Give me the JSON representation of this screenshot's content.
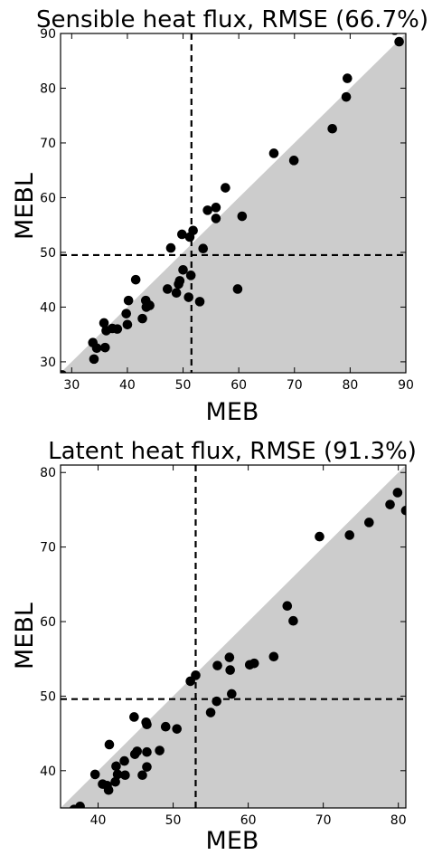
{
  "chart_data": [
    {
      "type": "scatter",
      "title": "Sensible heat flux, RMSE (66.7%)",
      "xlabel": "MEB",
      "ylabel": "MEBL",
      "xlim": [
        28,
        90
      ],
      "ylim": [
        28,
        90
      ],
      "xticks": [
        30,
        40,
        50,
        60,
        70,
        80,
        90
      ],
      "yticks": [
        30,
        40,
        50,
        60,
        70,
        80,
        90
      ],
      "grid": false,
      "legend": "none",
      "shaded_region": "below 1:1 line (y <= x)",
      "shade_color": "#cccccc",
      "point_color": "#000000",
      "vline_x": 51.5,
      "hline_y": 49.5,
      "points": [
        [
          28.3,
          27.6
        ],
        [
          33.8,
          33.5
        ],
        [
          34.0,
          30.5
        ],
        [
          34.5,
          32.5
        ],
        [
          35.8,
          37.1
        ],
        [
          36.0,
          32.6
        ],
        [
          36.2,
          35.7
        ],
        [
          37.3,
          36.1
        ],
        [
          38.2,
          36.0
        ],
        [
          39.8,
          38.8
        ],
        [
          40.0,
          36.8
        ],
        [
          40.2,
          41.2
        ],
        [
          41.5,
          45.0
        ],
        [
          42.7,
          37.9
        ],
        [
          43.3,
          41.2
        ],
        [
          43.4,
          40.0
        ],
        [
          44.0,
          40.3
        ],
        [
          47.2,
          43.3
        ],
        [
          47.8,
          50.8
        ],
        [
          48.8,
          42.6
        ],
        [
          49.2,
          44.2
        ],
        [
          49.4,
          44.8
        ],
        [
          49.8,
          53.3
        ],
        [
          50.0,
          46.8
        ],
        [
          51.0,
          41.8
        ],
        [
          51.2,
          52.8
        ],
        [
          51.4,
          45.8
        ],
        [
          51.8,
          54.0
        ],
        [
          53.0,
          41.0
        ],
        [
          53.6,
          50.7
        ],
        [
          54.4,
          57.7
        ],
        [
          55.9,
          58.2
        ],
        [
          55.9,
          56.2
        ],
        [
          57.6,
          61.8
        ],
        [
          59.8,
          43.3
        ],
        [
          60.6,
          56.6
        ],
        [
          66.3,
          68.1
        ],
        [
          69.9,
          66.8
        ],
        [
          76.8,
          72.6
        ],
        [
          79.3,
          78.4
        ],
        [
          79.5,
          81.8
        ],
        [
          88.0,
          90.6
        ],
        [
          88.8,
          88.5
        ]
      ]
    },
    {
      "type": "scatter",
      "title": "Latent heat flux, RMSE (91.3%)",
      "xlabel": "MEB",
      "ylabel": "MEBL",
      "xlim": [
        35,
        81
      ],
      "ylim": [
        35,
        81
      ],
      "xticks": [
        40,
        50,
        60,
        70,
        80
      ],
      "yticks": [
        40,
        50,
        60,
        70,
        80
      ],
      "grid": false,
      "legend": "none",
      "shaded_region": "below 1:1 line (y <= x)",
      "shade_color": "#cccccc",
      "point_color": "#000000",
      "vline_x": 53.0,
      "hline_y": 49.6,
      "points": [
        [
          36.8,
          34.8
        ],
        [
          37.6,
          35.2
        ],
        [
          39.6,
          39.5
        ],
        [
          40.6,
          38.2
        ],
        [
          41.2,
          38.0
        ],
        [
          41.4,
          37.4
        ],
        [
          41.5,
          43.5
        ],
        [
          42.3,
          38.5
        ],
        [
          42.4,
          40.6
        ],
        [
          42.6,
          39.5
        ],
        [
          43.5,
          41.3
        ],
        [
          43.6,
          39.4
        ],
        [
          44.8,
          47.2
        ],
        [
          44.9,
          42.2
        ],
        [
          45.2,
          42.6
        ],
        [
          45.9,
          39.4
        ],
        [
          46.4,
          46.5
        ],
        [
          46.5,
          46.2
        ],
        [
          46.5,
          42.5
        ],
        [
          46.5,
          40.5
        ],
        [
          48.2,
          42.7
        ],
        [
          49.0,
          45.9
        ],
        [
          50.5,
          45.6
        ],
        [
          52.3,
          52.0
        ],
        [
          53.0,
          52.8
        ],
        [
          55.0,
          47.8
        ],
        [
          55.8,
          49.3
        ],
        [
          55.9,
          54.1
        ],
        [
          57.5,
          55.2
        ],
        [
          57.6,
          53.5
        ],
        [
          57.8,
          50.3
        ],
        [
          60.2,
          54.2
        ],
        [
          60.8,
          54.4
        ],
        [
          63.4,
          55.3
        ],
        [
          65.2,
          62.1
        ],
        [
          66.0,
          60.1
        ],
        [
          69.5,
          71.4
        ],
        [
          73.5,
          71.6
        ],
        [
          76.1,
          73.3
        ],
        [
          78.9,
          75.7
        ],
        [
          79.9,
          77.3
        ],
        [
          81.0,
          74.9
        ]
      ]
    }
  ]
}
